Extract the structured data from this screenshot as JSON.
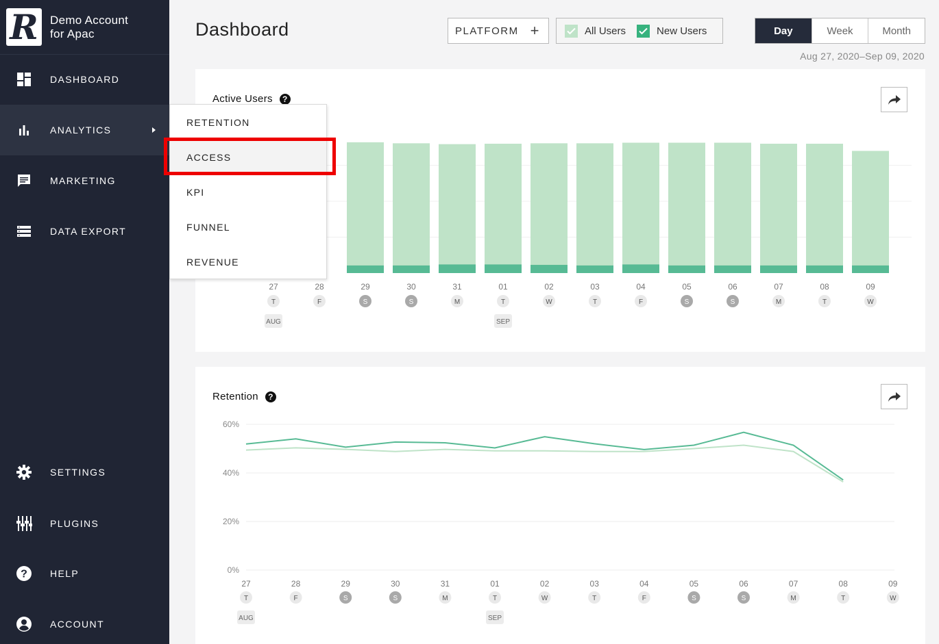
{
  "account": {
    "name_line1": "Demo Account",
    "name_line2": "for Apac",
    "logo_letter": "R"
  },
  "sidebar": {
    "items": [
      {
        "label": "DASHBOARD",
        "icon": "dashboard-icon"
      },
      {
        "label": "ANALYTICS",
        "icon": "bar-chart-icon",
        "active": true
      },
      {
        "label": "MARKETING",
        "icon": "message-icon"
      },
      {
        "label": "DATA EXPORT",
        "icon": "list-icon"
      },
      {
        "label": "SETTINGS",
        "icon": "gear-icon"
      },
      {
        "label": "PLUGINS",
        "icon": "sliders-icon"
      },
      {
        "label": "HELP",
        "icon": "help-icon"
      },
      {
        "label": "ACCOUNT",
        "icon": "account-icon"
      }
    ]
  },
  "submenu": {
    "items": [
      "RETENTION",
      "ACCESS",
      "KPI",
      "FUNNEL",
      "REVENUE"
    ],
    "highlighted": "ACCESS"
  },
  "header": {
    "title": "Dashboard",
    "platform_label": "PLATFORM",
    "filters": [
      {
        "label": "All Users",
        "checked": true,
        "color": "#bfe3c8"
      },
      {
        "label": "New Users",
        "checked": true,
        "color": "#37b27e"
      }
    ],
    "periods": [
      "Day",
      "Week",
      "Month"
    ],
    "selected_period": "Day",
    "date_range": "Aug 27, 2020–Sep 09, 2020"
  },
  "days": [
    "27",
    "28",
    "29",
    "30",
    "31",
    "01",
    "02",
    "03",
    "04",
    "05",
    "06",
    "07",
    "08",
    "09"
  ],
  "weekdays": [
    "T",
    "F",
    "S",
    "S",
    "M",
    "T",
    "W",
    "T",
    "F",
    "S",
    "S",
    "M",
    "T",
    "W"
  ],
  "weekend": [
    false,
    false,
    true,
    true,
    false,
    false,
    false,
    false,
    false,
    true,
    true,
    false,
    false,
    false
  ],
  "months": [
    {
      "index": 0,
      "label": "AUG"
    },
    {
      "index": 5,
      "label": "SEP"
    }
  ],
  "active_users": {
    "title": "Active Users"
  },
  "retention": {
    "title": "Retention"
  },
  "colors": {
    "all_users": "#bfe3c8",
    "new_users": "#57ba94",
    "sidebar": "#202534"
  },
  "chart_data": [
    {
      "type": "bar",
      "title": "Active Users",
      "categories": [
        "27",
        "28",
        "29",
        "30",
        "31",
        "01",
        "02",
        "03",
        "04",
        "05",
        "06",
        "07",
        "08",
        "09"
      ],
      "series": [
        {
          "name": "All Users",
          "values": [
            null,
            null,
            91,
            90.3,
            89.7,
            90,
            90.3,
            90.3,
            90.7,
            90.7,
            90.7,
            90,
            90,
            85
          ]
        },
        {
          "name": "New Users",
          "values": [
            null,
            null,
            5.3,
            5.3,
            6,
            6,
            5.7,
            5.3,
            6,
            5.3,
            5.3,
            5.3,
            5.3,
            5.3
          ]
        }
      ]
    },
    {
      "type": "line",
      "title": "Retention",
      "x": [
        "27",
        "28",
        "29",
        "30",
        "31",
        "01",
        "02",
        "03",
        "04",
        "05",
        "06",
        "07",
        "08",
        "09"
      ],
      "y_ticks": [
        "0%",
        "20%",
        "40%",
        "60%"
      ],
      "ylim": [
        0,
        60
      ],
      "series": [
        {
          "name": "New Users",
          "values": [
            51.9,
            54,
            50.6,
            52.7,
            52.4,
            50.3,
            54.9,
            52,
            49.6,
            51.4,
            56.7,
            51.4,
            37.1,
            null
          ]
        },
        {
          "name": "All Users",
          "values": [
            49.4,
            50.3,
            49.7,
            48.8,
            49.7,
            49.1,
            49.1,
            48.8,
            48.8,
            50,
            51.4,
            48.8,
            36.3,
            null
          ]
        }
      ]
    }
  ]
}
